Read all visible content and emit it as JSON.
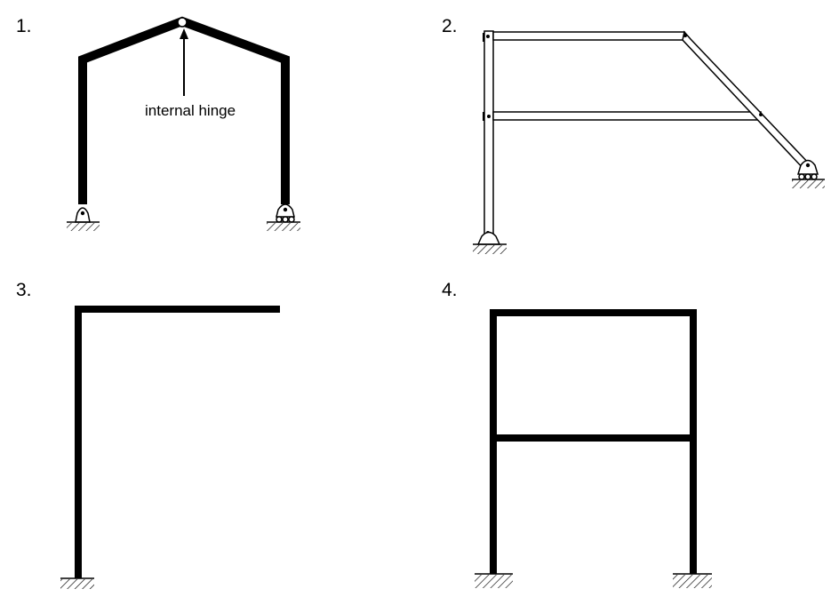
{
  "figure": {
    "panels": [
      {
        "number": "1.",
        "annotation": "internal hinge"
      },
      {
        "number": "2."
      },
      {
        "number": "3."
      },
      {
        "number": "4."
      }
    ]
  }
}
